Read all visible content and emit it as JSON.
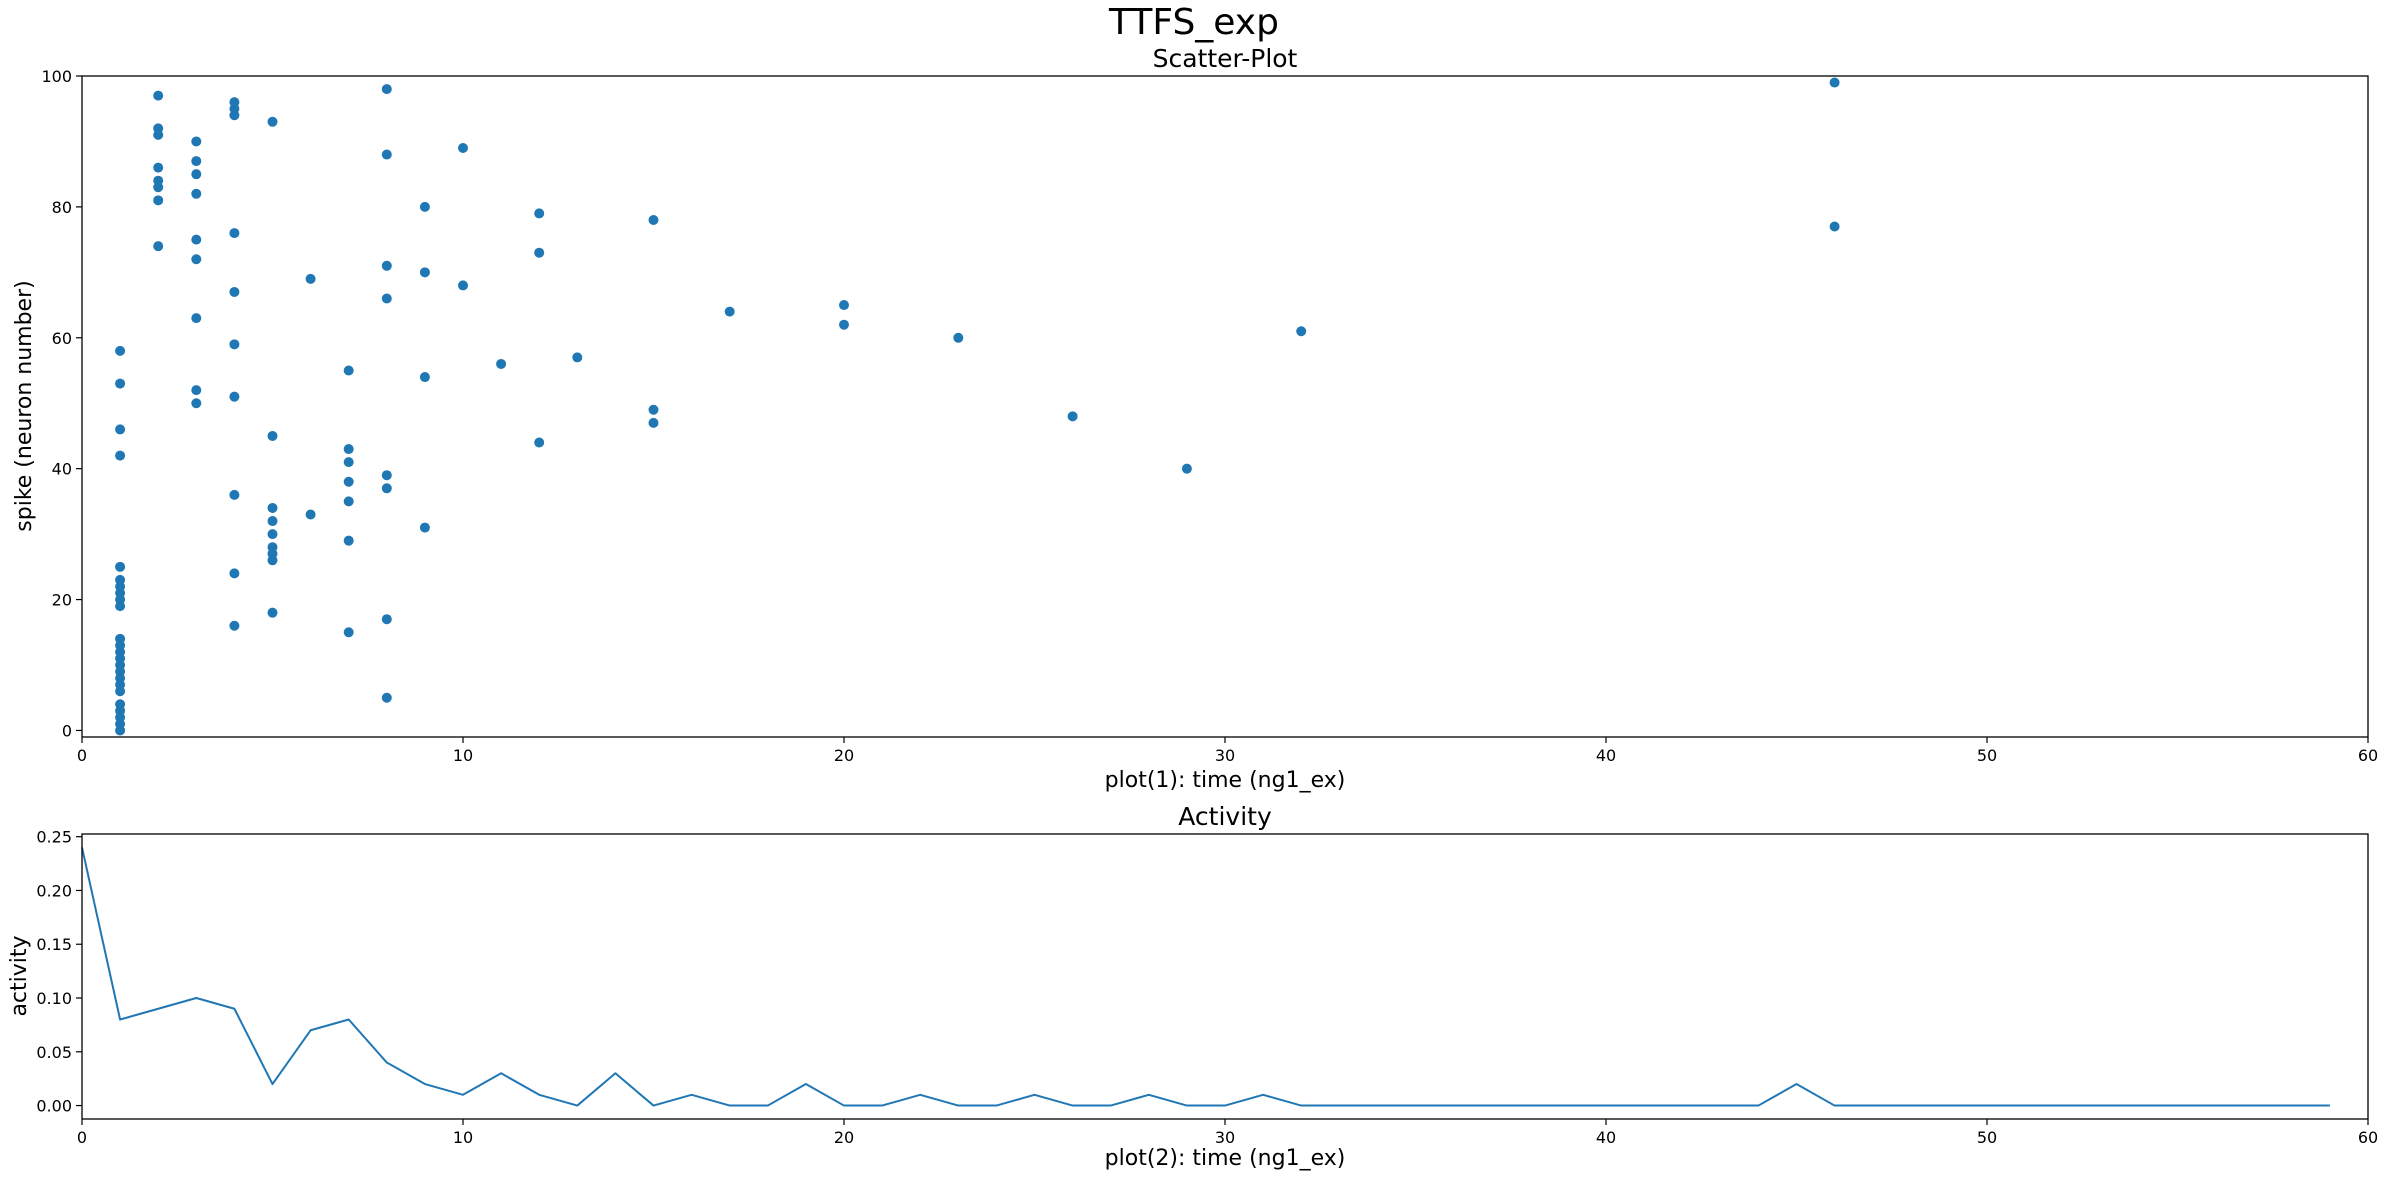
{
  "figure": {
    "suptitle": "TTFS_exp"
  },
  "colors": {
    "series": "#1f77b4",
    "axis": "#000000",
    "background": "#ffffff"
  },
  "chart_data": [
    {
      "type": "scatter",
      "title": "Scatter-Plot",
      "xlabel": "plot(1): time (ng1_ex)",
      "ylabel": "spike (neuron number)",
      "xlim": [
        0,
        60
      ],
      "ylim": [
        -1,
        100
      ],
      "xticks": [
        0,
        10,
        20,
        30,
        40,
        50,
        60
      ],
      "xtick_labels": [
        "0",
        "10",
        "20",
        "30",
        "40",
        "50",
        "60"
      ],
      "yticks": [
        0,
        20,
        40,
        60,
        80,
        100
      ],
      "ytick_labels": [
        "0",
        "20",
        "40",
        "60",
        "80",
        "100"
      ],
      "grid": false,
      "points": [
        [
          1,
          0
        ],
        [
          1,
          1
        ],
        [
          1,
          2
        ],
        [
          1,
          3
        ],
        [
          1,
          4
        ],
        [
          1,
          6
        ],
        [
          1,
          7
        ],
        [
          1,
          8
        ],
        [
          1,
          9
        ],
        [
          1,
          10
        ],
        [
          1,
          11
        ],
        [
          1,
          12
        ],
        [
          1,
          13
        ],
        [
          1,
          14
        ],
        [
          1,
          19
        ],
        [
          1,
          20
        ],
        [
          1,
          21
        ],
        [
          1,
          22
        ],
        [
          1,
          23
        ],
        [
          1,
          25
        ],
        [
          1,
          42
        ],
        [
          1,
          46
        ],
        [
          1,
          53
        ],
        [
          1,
          58
        ],
        [
          2,
          74
        ],
        [
          2,
          81
        ],
        [
          2,
          83
        ],
        [
          2,
          84
        ],
        [
          2,
          86
        ],
        [
          2,
          91
        ],
        [
          2,
          92
        ],
        [
          2,
          97
        ],
        [
          3,
          50
        ],
        [
          3,
          52
        ],
        [
          3,
          63
        ],
        [
          3,
          72
        ],
        [
          3,
          75
        ],
        [
          3,
          82
        ],
        [
          3,
          85
        ],
        [
          3,
          87
        ],
        [
          3,
          90
        ],
        [
          4,
          16
        ],
        [
          4,
          24
        ],
        [
          4,
          36
        ],
        [
          4,
          51
        ],
        [
          4,
          59
        ],
        [
          4,
          67
        ],
        [
          4,
          76
        ],
        [
          4,
          94
        ],
        [
          4,
          95
        ],
        [
          4,
          96
        ],
        [
          5,
          18
        ],
        [
          5,
          26
        ],
        [
          5,
          27
        ],
        [
          5,
          28
        ],
        [
          5,
          30
        ],
        [
          5,
          32
        ],
        [
          5,
          34
        ],
        [
          5,
          45
        ],
        [
          5,
          93
        ],
        [
          6,
          33
        ],
        [
          6,
          69
        ],
        [
          7,
          15
        ],
        [
          7,
          29
        ],
        [
          7,
          35
        ],
        [
          7,
          38
        ],
        [
          7,
          41
        ],
        [
          7,
          43
        ],
        [
          7,
          55
        ],
        [
          8,
          5
        ],
        [
          8,
          17
        ],
        [
          8,
          37
        ],
        [
          8,
          39
        ],
        [
          8,
          66
        ],
        [
          8,
          71
        ],
        [
          8,
          88
        ],
        [
          8,
          98
        ],
        [
          9,
          31
        ],
        [
          9,
          54
        ],
        [
          9,
          70
        ],
        [
          9,
          80
        ],
        [
          10,
          68
        ],
        [
          10,
          89
        ],
        [
          11,
          56
        ],
        [
          12,
          44
        ],
        [
          12,
          73
        ],
        [
          12,
          79
        ],
        [
          13,
          57
        ],
        [
          15,
          47
        ],
        [
          15,
          49
        ],
        [
          15,
          78
        ],
        [
          17,
          64
        ],
        [
          20,
          62
        ],
        [
          20,
          65
        ],
        [
          23,
          60
        ],
        [
          26,
          48
        ],
        [
          29,
          40
        ],
        [
          32,
          61
        ],
        [
          46,
          77
        ],
        [
          46,
          99
        ]
      ]
    },
    {
      "type": "line",
      "title": "Activity",
      "xlabel": "plot(2): time (ng1_ex)",
      "ylabel": "activity",
      "xlim": [
        0,
        60
      ],
      "ylim": [
        -0.0125,
        0.2525
      ],
      "xticks": [
        0,
        10,
        20,
        30,
        40,
        50,
        60
      ],
      "xtick_labels": [
        "0",
        "10",
        "20",
        "30",
        "40",
        "50",
        "60"
      ],
      "yticks": [
        0,
        0.05,
        0.1,
        0.15,
        0.2,
        0.25
      ],
      "ytick_labels": [
        "0.00",
        "0.05",
        "0.10",
        "0.15",
        "0.20",
        "0.25"
      ],
      "grid": false,
      "x": [
        0,
        1,
        2,
        3,
        4,
        5,
        6,
        7,
        8,
        9,
        10,
        11,
        12,
        13,
        14,
        15,
        16,
        17,
        18,
        19,
        20,
        21,
        22,
        23,
        24,
        25,
        26,
        27,
        28,
        29,
        30,
        31,
        32,
        33,
        34,
        35,
        36,
        37,
        38,
        39,
        40,
        41,
        42,
        43,
        44,
        45,
        46,
        47,
        48,
        49,
        50,
        51,
        52,
        53,
        54,
        55,
        56,
        57,
        58,
        59
      ],
      "y": [
        0.24,
        0.08,
        0.09,
        0.1,
        0.09,
        0.02,
        0.07,
        0.08,
        0.04,
        0.02,
        0.01,
        0.03,
        0.01,
        0.0,
        0.03,
        0.0,
        0.01,
        0.0,
        0.0,
        0.02,
        0.0,
        0.0,
        0.01,
        0.0,
        0.0,
        0.01,
        0.0,
        0.0,
        0.01,
        0.0,
        0.0,
        0.01,
        0.0,
        0.0,
        0.0,
        0.0,
        0.0,
        0.0,
        0.0,
        0.0,
        0.0,
        0.0,
        0.0,
        0.0,
        0.0,
        0.02,
        0.0,
        0.0,
        0.0,
        0.0,
        0.0,
        0.0,
        0.0,
        0.0,
        0.0,
        0.0,
        0.0,
        0.0,
        0.0,
        0.0
      ]
    }
  ]
}
